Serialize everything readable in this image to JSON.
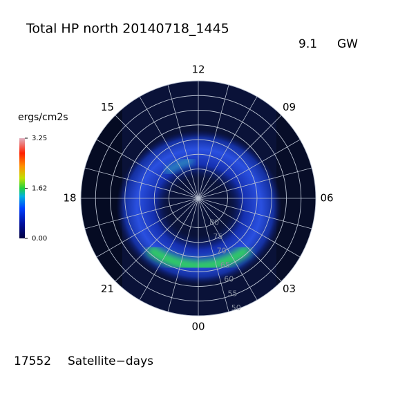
{
  "chart_data": {
    "type": "polar",
    "title": "Total HP north 20140718_1445",
    "power": "9.1",
    "power_unit": "GW",
    "colorbar_label": "ergs/cm2s",
    "clim": [
      0,
      3.25
    ],
    "cticks": [
      {
        "value": 0,
        "label": "0.00"
      },
      {
        "value": 1.62,
        "label": "1.62"
      },
      {
        "value": 3.25,
        "label": "3.25"
      }
    ],
    "theta_labels": [
      "12",
      "09",
      "06",
      "03",
      "00",
      "21",
      "18",
      "15"
    ],
    "rlim": [
      90,
      50
    ],
    "rticks": [
      80,
      75,
      70,
      65,
      60,
      55,
      50
    ],
    "footer_count": "17552",
    "footer_label": "Satellite−days"
  }
}
